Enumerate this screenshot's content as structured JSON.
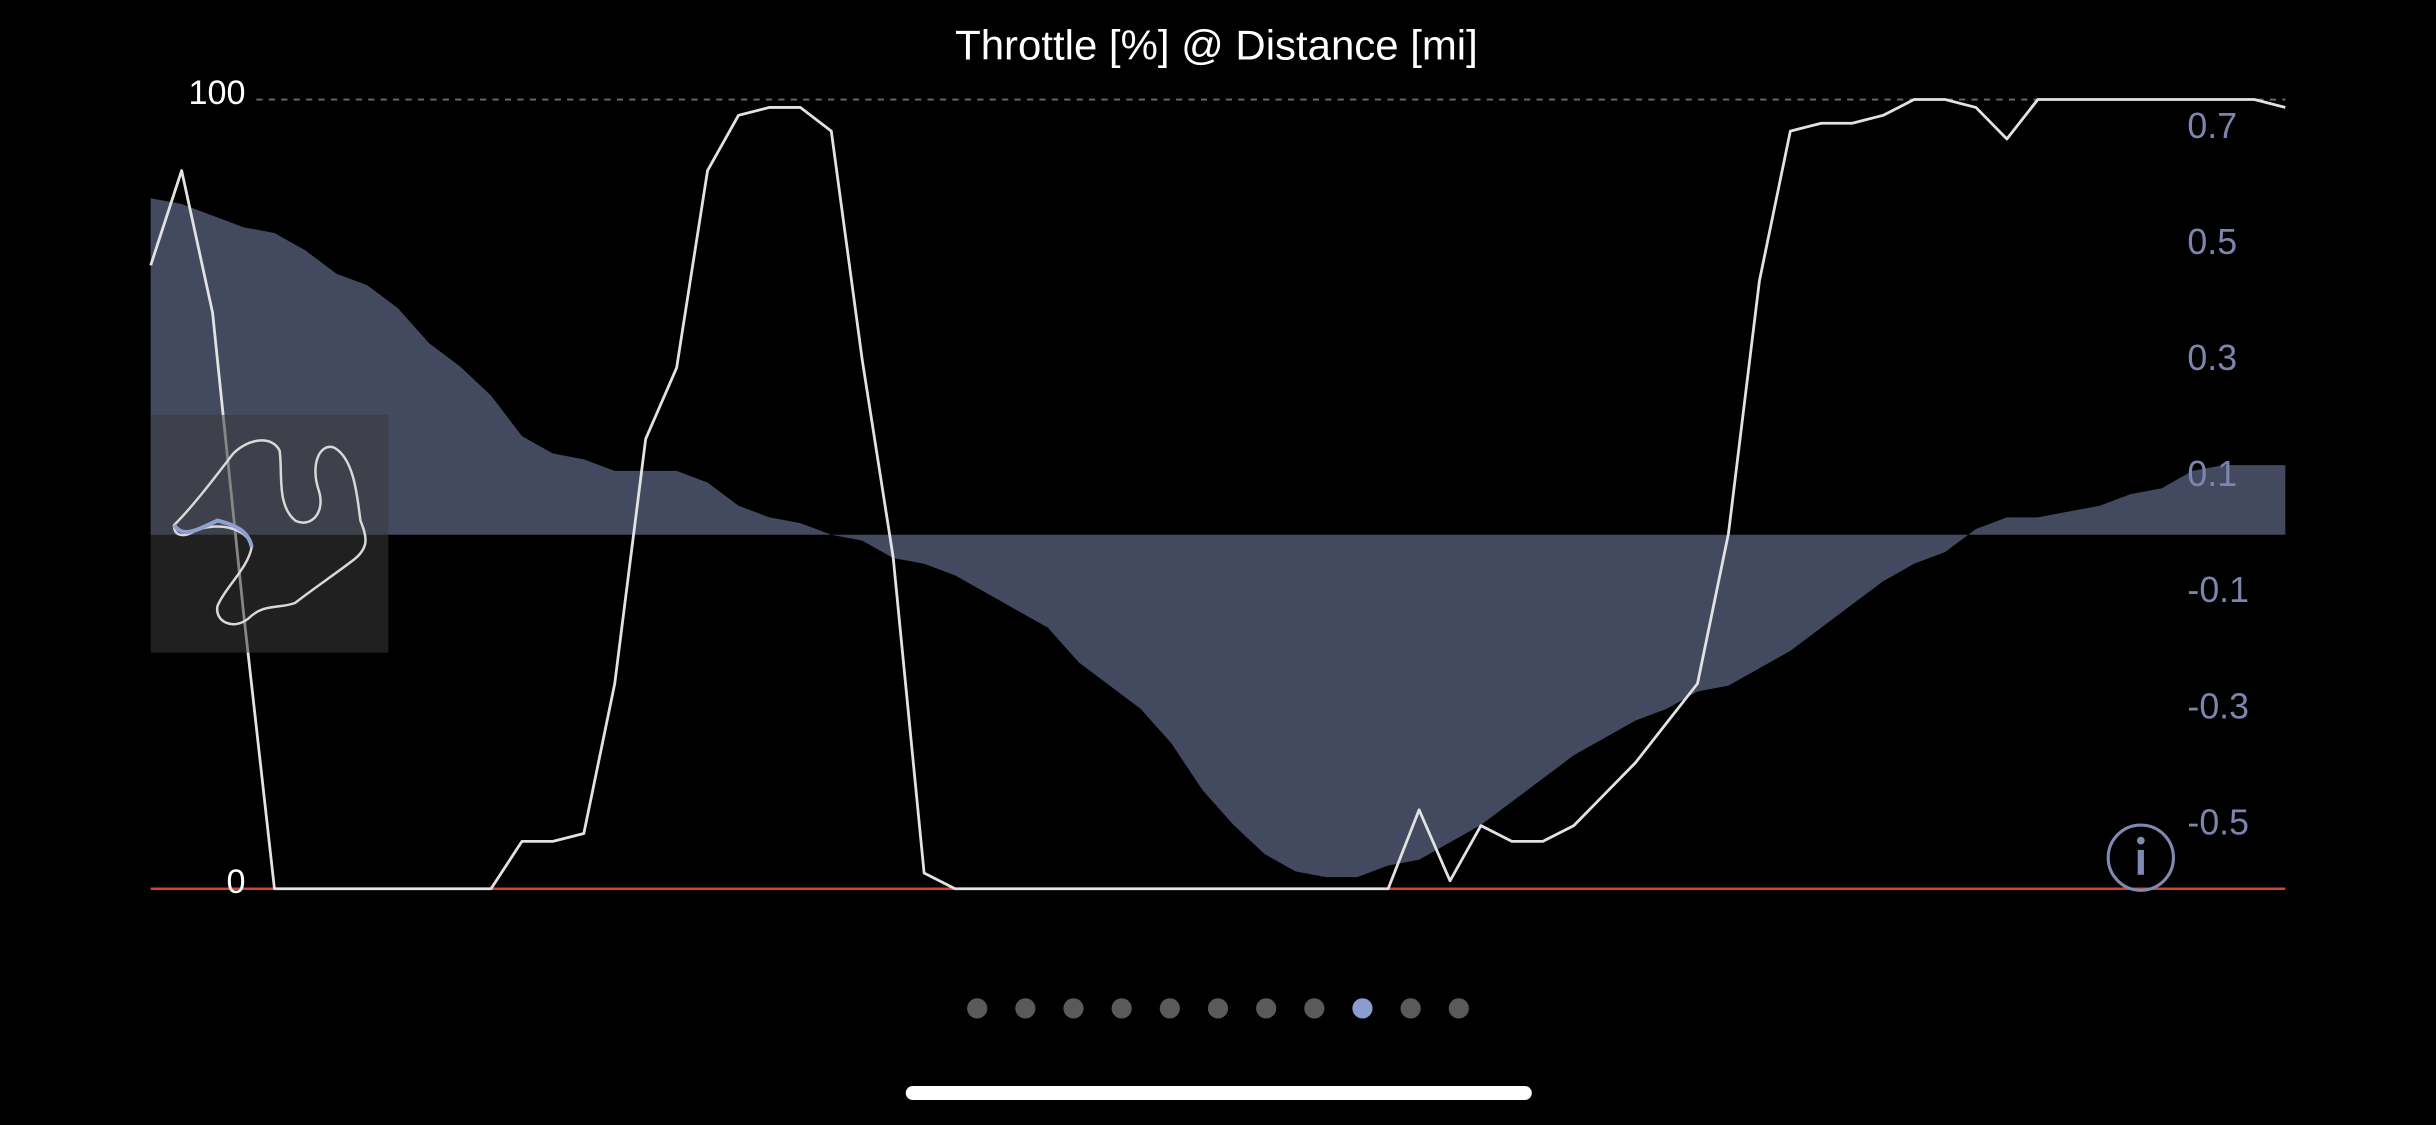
{
  "chart_data": {
    "type": "line",
    "title": "Throttle [%] @ Distance [mi]",
    "ylim": [
      0,
      100
    ],
    "yticks": [
      0,
      100
    ],
    "y2lim": [
      -0.61,
      0.75
    ],
    "y2ticks": [
      0.7,
      0.5,
      0.3,
      0.1,
      -0.1,
      -0.3,
      -0.5
    ],
    "grid": true,
    "series": [
      {
        "color": "#e2e2e2",
        "values": [
          79,
          91,
          73,
          35,
          0,
          0,
          0,
          0,
          0,
          0,
          0,
          0,
          6,
          6,
          7,
          26,
          57,
          66,
          91,
          98,
          99,
          99,
          96,
          67,
          42,
          2,
          0,
          0,
          0,
          0,
          0,
          0,
          0,
          0,
          0,
          0,
          0,
          0,
          0,
          0,
          0,
          10,
          1,
          8,
          6,
          6,
          8,
          12,
          16,
          21,
          26,
          45,
          77,
          96,
          97,
          97,
          98,
          100,
          100,
          99,
          95,
          100,
          100,
          100,
          100,
          100,
          100,
          100,
          100,
          99
        ]
      },
      {
        "color": "#434a60",
        "axis": "y2",
        "type": "area",
        "values": [
          0.58,
          0.57,
          0.55,
          0.53,
          0.52,
          0.49,
          0.45,
          0.43,
          0.39,
          0.33,
          0.29,
          0.24,
          0.17,
          0.14,
          0.13,
          0.11,
          0.11,
          0.11,
          0.09,
          0.05,
          0.03,
          0.02,
          0,
          -0.01,
          -0.04,
          -0.05,
          -0.07,
          -0.1,
          -0.13,
          -0.16,
          -0.22,
          -0.26,
          -0.3,
          -0.36,
          -0.44,
          -0.5,
          -0.55,
          -0.58,
          -0.59,
          -0.59,
          -0.57,
          -0.56,
          -0.53,
          -0.5,
          -0.46,
          -0.42,
          -0.38,
          -0.35,
          -0.32,
          -0.3,
          -0.27,
          -0.26,
          -0.23,
          -0.2,
          -0.16,
          -0.12,
          -0.08,
          -0.05,
          -0.03,
          0.01,
          0.03,
          0.03,
          0.04,
          0.05,
          0.07,
          0.08,
          0.11,
          0.12,
          0.12,
          0.12
        ]
      }
    ]
  }
}
